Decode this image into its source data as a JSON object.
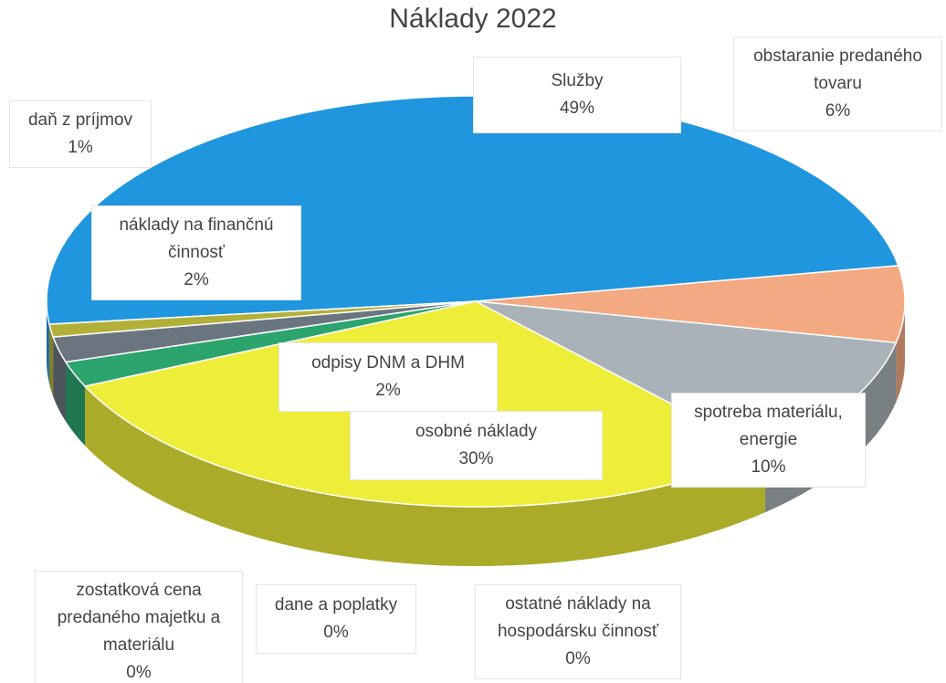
{
  "chart_data": {
    "type": "pie",
    "title": "Náklady 2022",
    "categories": [
      "Služby",
      "obstaranie predaného tovaru",
      "spotreba materiálu, energie",
      "osobné náklady",
      "ostatné náklady na hospodársku činnosť",
      "dane a poplatky",
      "zostatková cena predaného majetku a materiálu",
      "odpisy DNM a DHM",
      "náklady na finančnú činnosť",
      "daň z príjmov"
    ],
    "values": [
      49,
      6,
      10,
      30,
      0,
      0,
      0,
      2,
      2,
      1
    ],
    "value_labels": [
      "49%",
      "6%",
      "10%",
      "30%",
      "0%",
      "0%",
      "0%",
      "2%",
      "2%",
      "1%"
    ],
    "colors": [
      "#1f96de",
      "#f3a981",
      "#a8b2b8",
      "#eeee3a",
      "#8f8d2c",
      "#e6e23e",
      "#23a06c",
      "#2ba46e",
      "#6b7580",
      "#b3b03a"
    ]
  }
}
